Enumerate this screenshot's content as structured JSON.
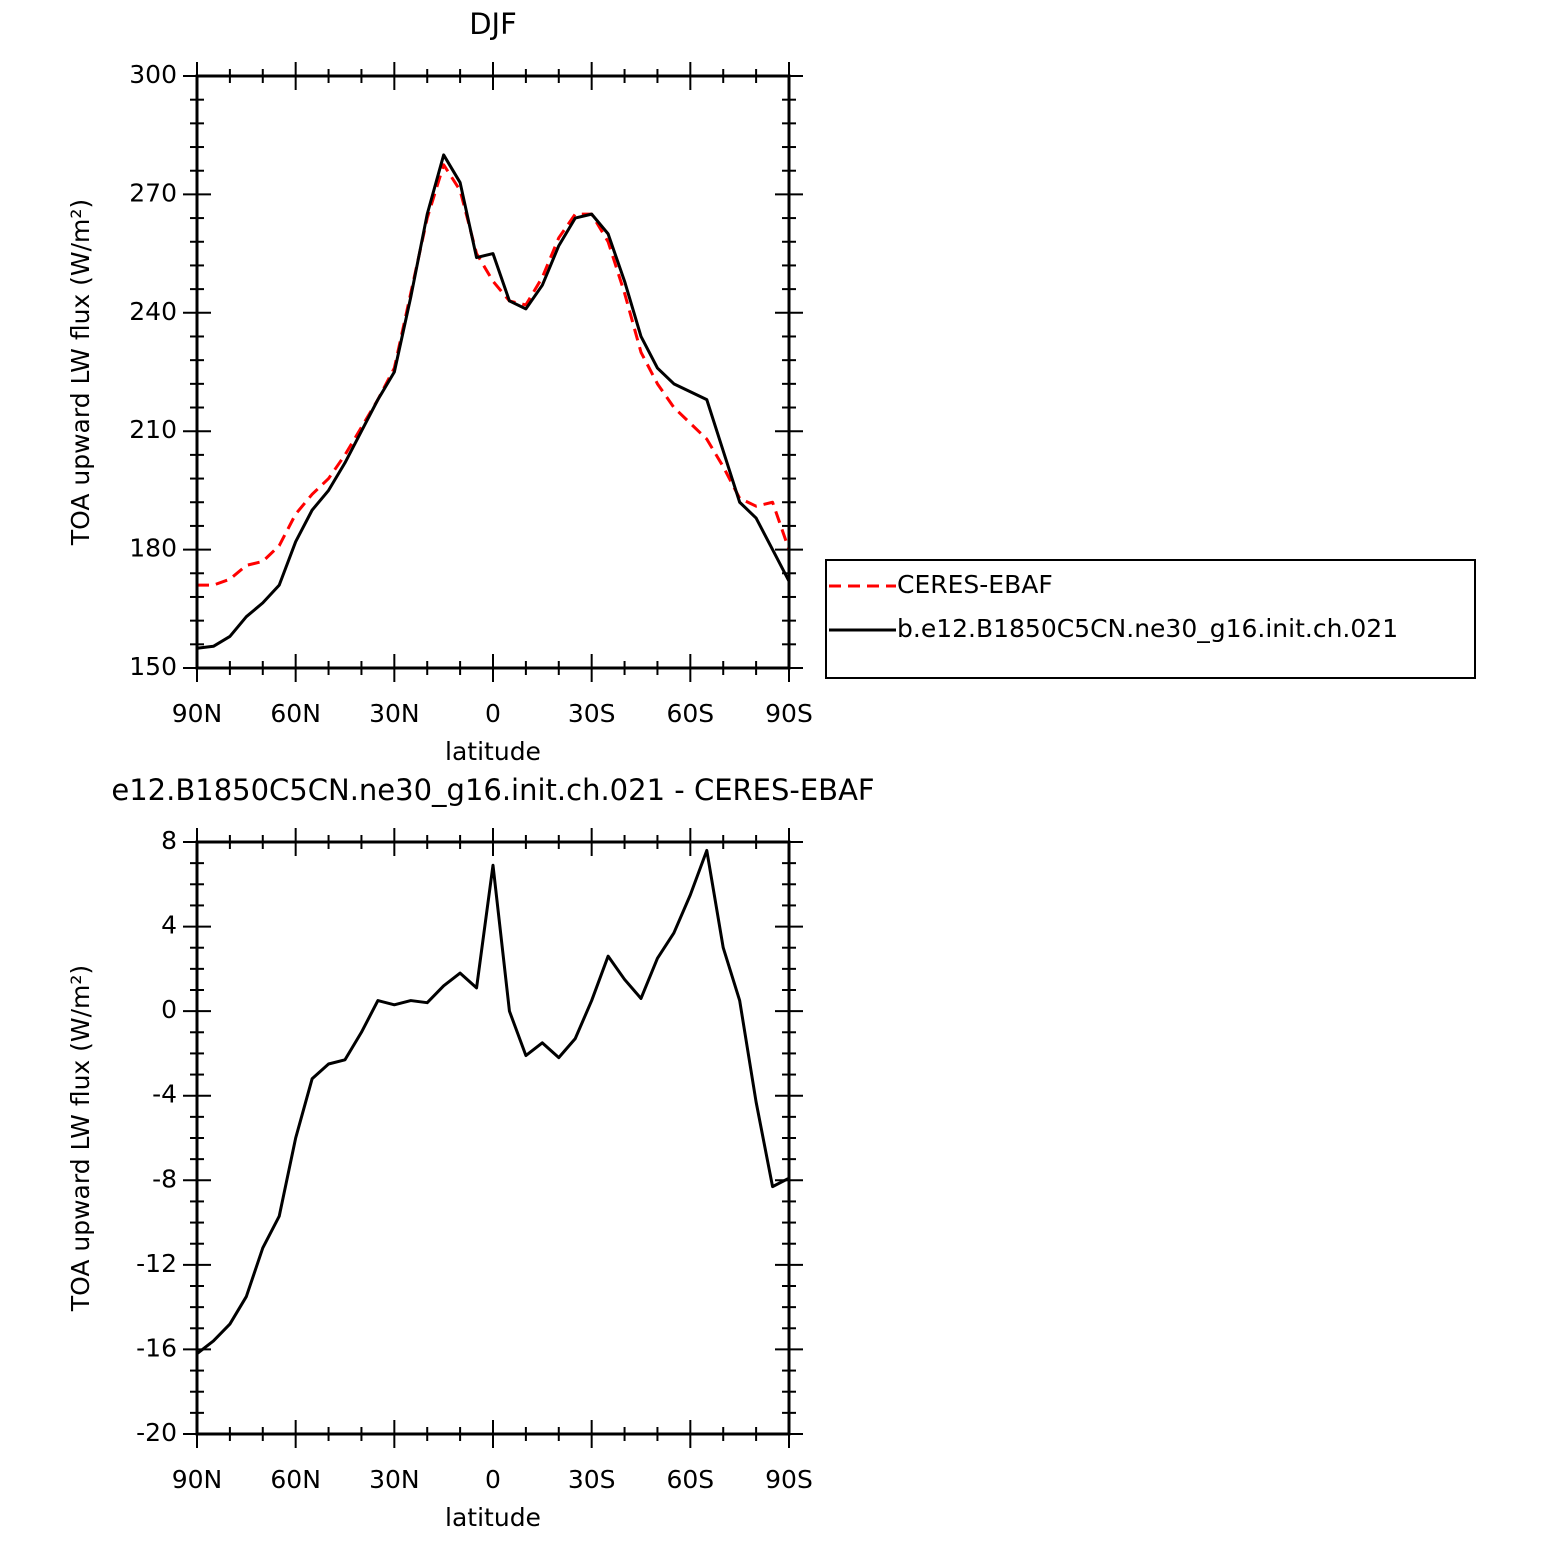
{
  "chart_data": [
    {
      "type": "line",
      "title": "DJF",
      "xlabel": "latitude",
      "ylabel": "TOA upward LW flux (W/m²)",
      "x": [
        90,
        85,
        80,
        75,
        70,
        65,
        60,
        55,
        50,
        45,
        40,
        35,
        30,
        25,
        20,
        15,
        10,
        5,
        0,
        -5,
        -10,
        -15,
        -20,
        -25,
        -30,
        -35,
        -40,
        -45,
        -50,
        -55,
        -60,
        -65,
        -70,
        -75,
        -80,
        -85,
        -90
      ],
      "xlim": [
        90,
        -90
      ],
      "xticks": [
        {
          "value": 90,
          "label": "90N"
        },
        {
          "value": 60,
          "label": "60N"
        },
        {
          "value": 30,
          "label": "30N"
        },
        0,
        {
          "value": -30,
          "label": "30S"
        },
        {
          "value": -60,
          "label": "60S"
        },
        {
          "value": -90,
          "label": "90S"
        }
      ],
      "ylim": [
        150,
        300
      ],
      "yticks": [
        150,
        180,
        210,
        240,
        270,
        300
      ],
      "legend": "right",
      "series": [
        {
          "name": "CERES-EBAF",
          "color": "#ff0000",
          "linestyle": "dashed",
          "values": [
            171,
            171,
            172.5,
            176,
            177,
            181,
            189,
            194,
            198,
            204,
            211,
            218,
            226,
            245,
            264,
            277.5,
            271,
            255,
            248,
            243,
            242,
            249,
            259,
            265,
            265,
            258,
            245,
            230,
            222,
            216,
            212,
            208,
            201,
            193,
            191,
            192,
            180
          ]
        },
        {
          "name": "b.e12.B1850C5CN.ne30_g16.init.ch.021",
          "color": "#000000",
          "linestyle": "solid",
          "values": [
            155,
            155.5,
            158,
            163,
            166.5,
            171,
            182,
            190,
            195,
            202,
            210,
            218,
            225,
            244,
            265,
            280,
            273,
            254,
            255,
            243,
            241,
            247,
            257,
            264,
            265,
            260,
            248,
            234,
            226,
            222,
            220,
            218,
            205,
            192,
            188,
            180,
            172
          ]
        }
      ]
    },
    {
      "type": "line",
      "title": "e12.B1850C5CN.ne30_g16.init.ch.021 - CERES-EBAF",
      "xlabel": "latitude",
      "ylabel": "TOA upward LW flux (W/m²)",
      "x": [
        90,
        85,
        80,
        75,
        70,
        65,
        60,
        55,
        50,
        45,
        40,
        35,
        30,
        25,
        20,
        15,
        10,
        5,
        0,
        -5,
        -10,
        -15,
        -20,
        -25,
        -30,
        -35,
        -40,
        -45,
        -50,
        -55,
        -60,
        -65,
        -70,
        -75,
        -80,
        -85,
        -90
      ],
      "xlim": [
        90,
        -90
      ],
      "xticks": [
        {
          "value": 90,
          "label": "90N"
        },
        {
          "value": 60,
          "label": "60N"
        },
        {
          "value": 30,
          "label": "30N"
        },
        0,
        {
          "value": -30,
          "label": "30S"
        },
        {
          "value": -60,
          "label": "60S"
        },
        {
          "value": -90,
          "label": "90S"
        }
      ],
      "ylim": [
        -20,
        8
      ],
      "yticks": [
        -20,
        -16,
        -12,
        -8,
        -4,
        0,
        4,
        8
      ],
      "color": "#000000",
      "values": [
        -16.2,
        -15.6,
        -14.8,
        -13.5,
        -11.2,
        -9.7,
        -6,
        -3.2,
        -2.5,
        -2.3,
        -1,
        0.5,
        0.3,
        0.5,
        0.4,
        1.2,
        1.8,
        1.1,
        6.9,
        0,
        -2.1,
        -1.5,
        -2.2,
        -1.3,
        0.5,
        2.6,
        1.5,
        0.6,
        2.5,
        3.7,
        5.5,
        7.6,
        3,
        0.5,
        -4.3,
        -8.3,
        -7.9
      ]
    }
  ]
}
